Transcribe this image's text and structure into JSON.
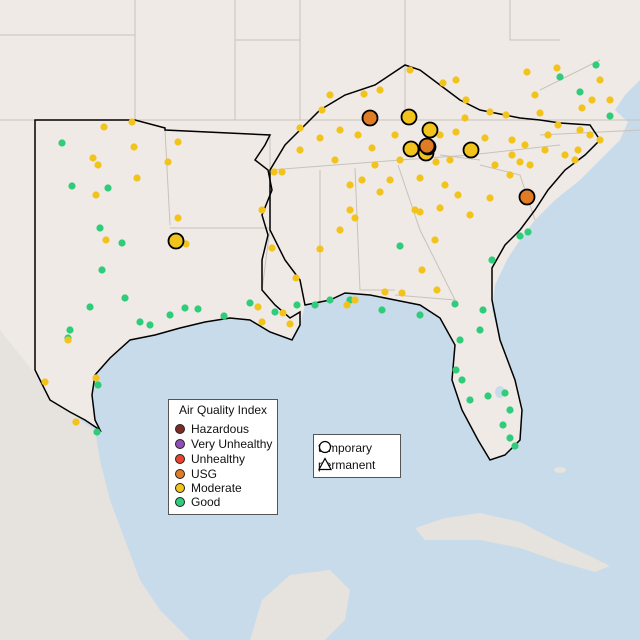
{
  "legend": {
    "title": "Air Quality Index",
    "categories": [
      {
        "label": "Hazardous",
        "color": "#7e2a24"
      },
      {
        "label": "Very Unhealthy",
        "color": "#8f4fb7"
      },
      {
        "label": "Unhealthy",
        "color": "#e8442d"
      },
      {
        "label": "USG",
        "color": "#e07b26"
      },
      {
        "label": "Moderate",
        "color": "#f2c31a"
      },
      {
        "label": "Good",
        "color": "#2fcc7a"
      }
    ]
  },
  "type_legend": {
    "temporary": "temporary",
    "permanent": "permanent"
  },
  "colors": {
    "water": "#c7dbea",
    "land": "#efeae5",
    "border": "#c8c2bc",
    "highlight_outline": "#000000"
  },
  "monitors": {
    "usg_large": 4,
    "moderate_large": 6
  }
}
